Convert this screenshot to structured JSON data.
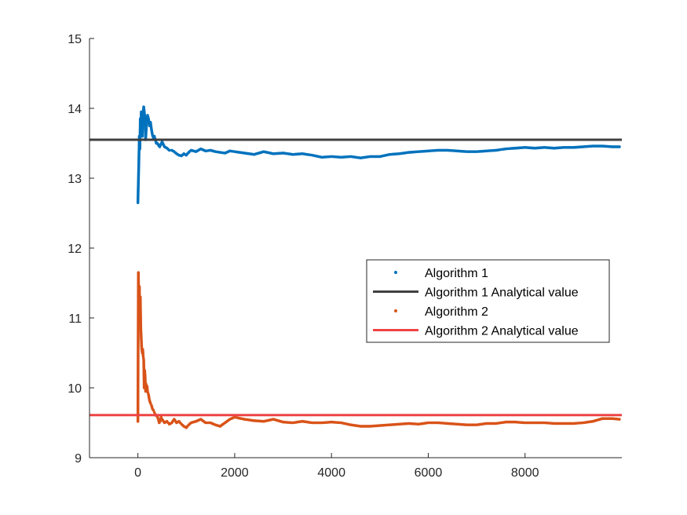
{
  "colors": {
    "algorithm1": "#0072BD",
    "algorithm2": "#D95319",
    "algorithm1_analytical": "#404040",
    "algorithm2_analytical": "#EE4444",
    "axis": "#262626"
  },
  "chart_data": {
    "type": "scatter",
    "title": "",
    "xlabel": "",
    "ylabel": "",
    "xlim": [
      -1000,
      10000
    ],
    "ylim": [
      9,
      15
    ],
    "xticks": [
      0,
      2000,
      4000,
      6000,
      8000
    ],
    "yticks": [
      9,
      10,
      11,
      12,
      13,
      14,
      15
    ],
    "xtick_labels": [
      "0",
      "2000",
      "4000",
      "6000",
      "8000"
    ],
    "ytick_labels": [
      "9",
      "10",
      "11",
      "12",
      "13",
      "14",
      "15"
    ],
    "grid": false,
    "legend_position": "center-right",
    "series": [
      {
        "name": "Algorithm 1",
        "kind": "points",
        "color": "#0072BD",
        "x": [
          0,
          10,
          20,
          30,
          40,
          50,
          60,
          70,
          80,
          90,
          100,
          120,
          140,
          160,
          180,
          200,
          220,
          240,
          260,
          280,
          300,
          320,
          340,
          360,
          380,
          400,
          450,
          500,
          550,
          600,
          650,
          700,
          750,
          800,
          850,
          900,
          950,
          1000,
          1050,
          1100,
          1200,
          1300,
          1400,
          1500,
          1600,
          1700,
          1800,
          1900,
          2000,
          2200,
          2400,
          2600,
          2800,
          3000,
          3200,
          3400,
          3600,
          3800,
          4000,
          4200,
          4400,
          4600,
          4800,
          5000,
          5200,
          5400,
          5600,
          5800,
          6000,
          6200,
          6400,
          6600,
          6800,
          7000,
          7200,
          7400,
          7600,
          7800,
          8000,
          8200,
          8400,
          8600,
          8800,
          9000,
          9200,
          9400,
          9600,
          9800,
          9950
        ],
        "y": [
          12.65,
          12.95,
          13.25,
          13.6,
          13.42,
          13.85,
          13.75,
          13.95,
          13.8,
          13.6,
          13.85,
          14.02,
          13.9,
          13.55,
          13.8,
          13.9,
          13.85,
          13.75,
          13.8,
          13.7,
          13.62,
          13.58,
          13.6,
          13.55,
          13.5,
          13.5,
          13.45,
          13.52,
          13.45,
          13.43,
          13.4,
          13.4,
          13.38,
          13.35,
          13.33,
          13.32,
          13.35,
          13.33,
          13.37,
          13.4,
          13.38,
          13.42,
          13.39,
          13.4,
          13.38,
          13.37,
          13.36,
          13.39,
          13.38,
          13.36,
          13.34,
          13.38,
          13.35,
          13.36,
          13.34,
          13.35,
          13.33,
          13.3,
          13.31,
          13.3,
          13.31,
          13.29,
          13.31,
          13.31,
          13.34,
          13.35,
          13.37,
          13.38,
          13.39,
          13.4,
          13.4,
          13.39,
          13.38,
          13.38,
          13.39,
          13.4,
          13.42,
          13.43,
          13.44,
          13.43,
          13.44,
          13.43,
          13.44,
          13.44,
          13.45,
          13.46,
          13.46,
          13.45,
          13.45
        ]
      },
      {
        "name": "Algorithm 1 Analytical value",
        "kind": "hline",
        "color": "#404040",
        "y": 13.55
      },
      {
        "name": "Algorithm 2",
        "kind": "points",
        "color": "#D95319",
        "x": [
          0,
          10,
          20,
          30,
          40,
          50,
          60,
          70,
          80,
          90,
          100,
          110,
          120,
          130,
          140,
          150,
          160,
          170,
          180,
          190,
          200,
          220,
          240,
          260,
          280,
          300,
          320,
          340,
          360,
          380,
          400,
          420,
          440,
          460,
          480,
          500,
          550,
          600,
          650,
          700,
          750,
          800,
          850,
          900,
          950,
          1000,
          1050,
          1100,
          1200,
          1300,
          1400,
          1500,
          1600,
          1700,
          1800,
          1900,
          2000,
          2200,
          2400,
          2600,
          2800,
          3000,
          3200,
          3400,
          3600,
          3800,
          4000,
          4200,
          4400,
          4600,
          4800,
          5000,
          5200,
          5400,
          5600,
          5800,
          6000,
          6200,
          6400,
          6600,
          6800,
          7000,
          7200,
          7400,
          7600,
          7800,
          8000,
          8200,
          8400,
          8600,
          8800,
          9000,
          9200,
          9400,
          9600,
          9800,
          9950
        ],
        "y": [
          9.52,
          11.65,
          11.1,
          11.45,
          11.05,
          11.3,
          10.85,
          10.7,
          10.55,
          10.5,
          10.55,
          10.45,
          10.4,
          10.0,
          10.25,
          10.15,
          9.95,
          10.05,
          9.98,
          10.02,
          9.95,
          9.9,
          9.82,
          9.78,
          9.75,
          9.7,
          9.68,
          9.65,
          9.62,
          9.6,
          9.6,
          9.55,
          9.5,
          9.52,
          9.58,
          9.55,
          9.5,
          9.52,
          9.48,
          9.5,
          9.55,
          9.5,
          9.52,
          9.48,
          9.45,
          9.43,
          9.47,
          9.5,
          9.52,
          9.55,
          9.5,
          9.5,
          9.47,
          9.45,
          9.5,
          9.55,
          9.58,
          9.55,
          9.53,
          9.52,
          9.55,
          9.51,
          9.5,
          9.52,
          9.5,
          9.5,
          9.51,
          9.5,
          9.47,
          9.45,
          9.45,
          9.46,
          9.47,
          9.48,
          9.49,
          9.48,
          9.5,
          9.5,
          9.49,
          9.48,
          9.47,
          9.47,
          9.49,
          9.49,
          9.51,
          9.51,
          9.5,
          9.5,
          9.5,
          9.49,
          9.49,
          9.49,
          9.5,
          9.52,
          9.56,
          9.56,
          9.55
        ]
      },
      {
        "name": "Algorithm 2 Analytical value",
        "kind": "hline",
        "color": "#EE4444",
        "y": 9.61
      }
    ]
  }
}
